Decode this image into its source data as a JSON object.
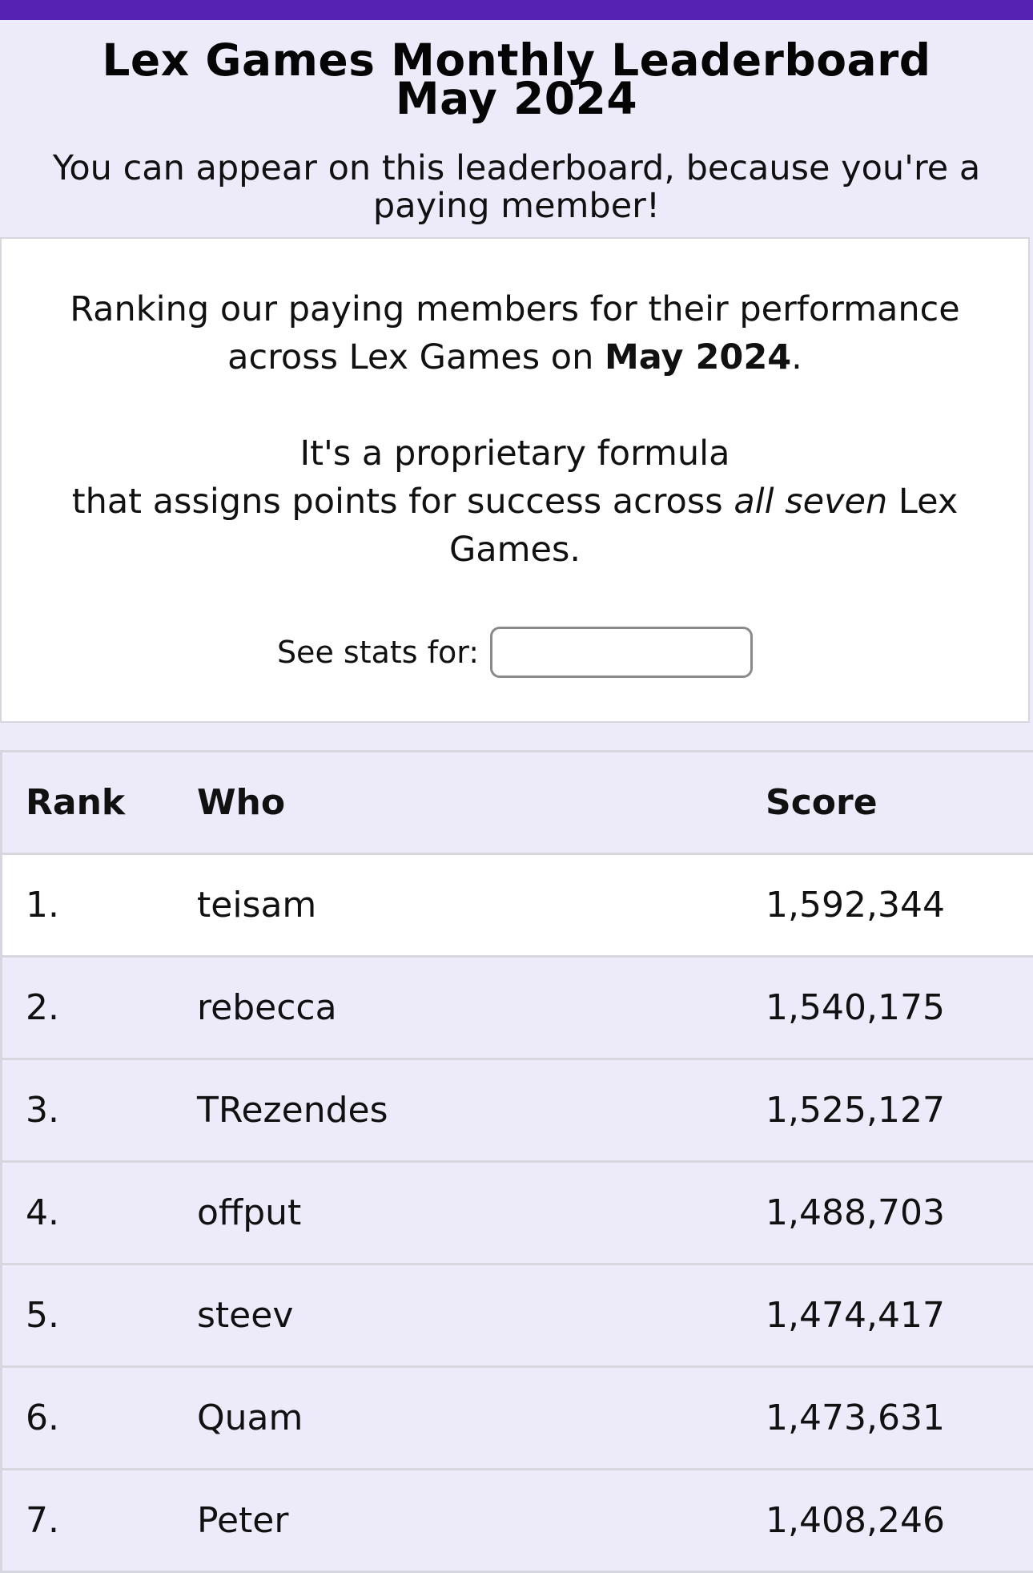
{
  "header": {
    "title_line1": "Lex Games Monthly Leaderboard",
    "title_line2": "May 2024",
    "subtitle": "You can appear on this leaderboard, because you're a paying member!"
  },
  "info": {
    "p1_before": "Ranking our paying members for their performance across Lex Games on ",
    "p1_bold": "May 2024",
    "p1_after": ".",
    "p2_line1": "It's a proprietary formula",
    "p2_before": "that assigns points for success across ",
    "p2_italic": "all seven",
    "p2_after": " Lex Games.",
    "stats_label": "See stats for:",
    "stats_value": ""
  },
  "table": {
    "headers": {
      "rank": "Rank",
      "who": "Who",
      "score": "Score"
    },
    "rows": [
      {
        "rank": "1.",
        "who": "teisam",
        "score": "1,592,344"
      },
      {
        "rank": "2.",
        "who": "rebecca",
        "score": "1,540,175"
      },
      {
        "rank": "3.",
        "who": "TRezendes",
        "score": "1,525,127"
      },
      {
        "rank": "4.",
        "who": "offput",
        "score": "1,488,703"
      },
      {
        "rank": "5.",
        "who": "steev",
        "score": "1,474,417"
      },
      {
        "rank": "6.",
        "who": "Quam",
        "score": "1,473,631"
      },
      {
        "rank": "7.",
        "who": "Peter",
        "score": "1,408,246"
      }
    ]
  },
  "colors": {
    "top_bar": "#5423b3",
    "background": "#edeafa",
    "card": "#ffffff",
    "border": "#d6d6de"
  }
}
